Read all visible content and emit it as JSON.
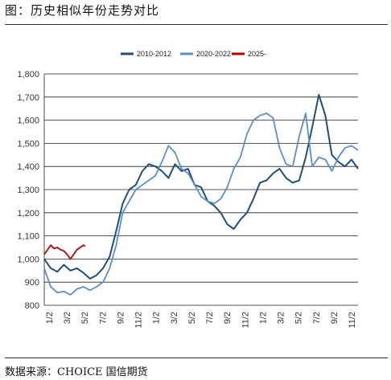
{
  "figure": {
    "title": "图：历史相似年份走势对比",
    "source": "数据来源：CHOICE 国信期货"
  },
  "chart_data": {
    "type": "line",
    "ylim": [
      800,
      1800
    ],
    "y_ticks": [
      "800",
      "900",
      "1,000",
      "1,100",
      "1,200",
      "1,300",
      "1,400",
      "1,500",
      "1,600",
      "1,700",
      "1,800"
    ],
    "x_ticks": [
      "1/2",
      "3/2",
      "5/2",
      "7/2",
      "9/2",
      "11/2",
      "1/2",
      "3/2",
      "5/2",
      "7/2",
      "9/2",
      "11/2",
      "1/2",
      "3/2",
      "5/2",
      "7/2",
      "9/2",
      "11/2"
    ],
    "grid": "horizontal",
    "legend_position": "top-center",
    "series": [
      {
        "name": "2010-2012",
        "color": "#1f4e79",
        "values": [
          [
            0,
            1000
          ],
          [
            4,
            960
          ],
          [
            8,
            945
          ],
          [
            12,
            975
          ],
          [
            16,
            950
          ],
          [
            20,
            960
          ],
          [
            24,
            940
          ],
          [
            28,
            915
          ],
          [
            32,
            930
          ],
          [
            36,
            960
          ],
          [
            40,
            1010
          ],
          [
            44,
            1120
          ],
          [
            48,
            1240
          ],
          [
            52,
            1300
          ],
          [
            56,
            1320
          ],
          [
            60,
            1380
          ],
          [
            64,
            1410
          ],
          [
            68,
            1400
          ],
          [
            72,
            1380
          ],
          [
            76,
            1350
          ],
          [
            80,
            1410
          ],
          [
            84,
            1380
          ],
          [
            88,
            1390
          ],
          [
            92,
            1320
          ],
          [
            96,
            1310
          ],
          [
            100,
            1250
          ],
          [
            104,
            1230
          ],
          [
            108,
            1200
          ],
          [
            112,
            1150
          ],
          [
            116,
            1130
          ],
          [
            120,
            1170
          ],
          [
            124,
            1200
          ],
          [
            128,
            1260
          ],
          [
            132,
            1330
          ],
          [
            136,
            1340
          ],
          [
            140,
            1370
          ],
          [
            144,
            1390
          ],
          [
            148,
            1350
          ],
          [
            152,
            1330
          ],
          [
            156,
            1340
          ],
          [
            160,
            1440
          ],
          [
            164,
            1570
          ],
          [
            168,
            1710
          ],
          [
            172,
            1620
          ],
          [
            176,
            1450
          ],
          [
            180,
            1420
          ],
          [
            184,
            1400
          ],
          [
            188,
            1430
          ],
          [
            192,
            1390
          ]
        ]
      },
      {
        "name": "2020-2022",
        "color": "#5b8fc7",
        "values": [
          [
            0,
            960
          ],
          [
            4,
            880
          ],
          [
            8,
            855
          ],
          [
            12,
            860
          ],
          [
            16,
            845
          ],
          [
            20,
            870
          ],
          [
            24,
            880
          ],
          [
            28,
            865
          ],
          [
            32,
            880
          ],
          [
            36,
            900
          ],
          [
            40,
            960
          ],
          [
            44,
            1060
          ],
          [
            48,
            1200
          ],
          [
            52,
            1250
          ],
          [
            56,
            1300
          ],
          [
            60,
            1320
          ],
          [
            64,
            1340
          ],
          [
            68,
            1360
          ],
          [
            72,
            1420
          ],
          [
            76,
            1490
          ],
          [
            80,
            1460
          ],
          [
            84,
            1390
          ],
          [
            88,
            1370
          ],
          [
            92,
            1320
          ],
          [
            96,
            1270
          ],
          [
            100,
            1250
          ],
          [
            104,
            1240
          ],
          [
            108,
            1260
          ],
          [
            112,
            1310
          ],
          [
            116,
            1390
          ],
          [
            120,
            1440
          ],
          [
            124,
            1540
          ],
          [
            128,
            1600
          ],
          [
            132,
            1620
          ],
          [
            136,
            1630
          ],
          [
            140,
            1610
          ],
          [
            144,
            1480
          ],
          [
            148,
            1410
          ],
          [
            152,
            1400
          ],
          [
            156,
            1530
          ],
          [
            160,
            1630
          ],
          [
            164,
            1400
          ],
          [
            168,
            1440
          ],
          [
            172,
            1430
          ],
          [
            176,
            1380
          ],
          [
            180,
            1440
          ],
          [
            184,
            1480
          ],
          [
            188,
            1490
          ],
          [
            192,
            1470
          ]
        ]
      },
      {
        "name": "2025-",
        "color": "#c00000",
        "values": [
          [
            0,
            1020
          ],
          [
            2,
            1040
          ],
          [
            4,
            1060
          ],
          [
            6,
            1045
          ],
          [
            8,
            1050
          ],
          [
            10,
            1040
          ],
          [
            12,
            1035
          ],
          [
            14,
            1020
          ],
          [
            16,
            1000
          ],
          [
            18,
            1020
          ],
          [
            20,
            1040
          ],
          [
            22,
            1050
          ],
          [
            24,
            1060
          ],
          [
            25,
            1055
          ]
        ]
      }
    ]
  }
}
